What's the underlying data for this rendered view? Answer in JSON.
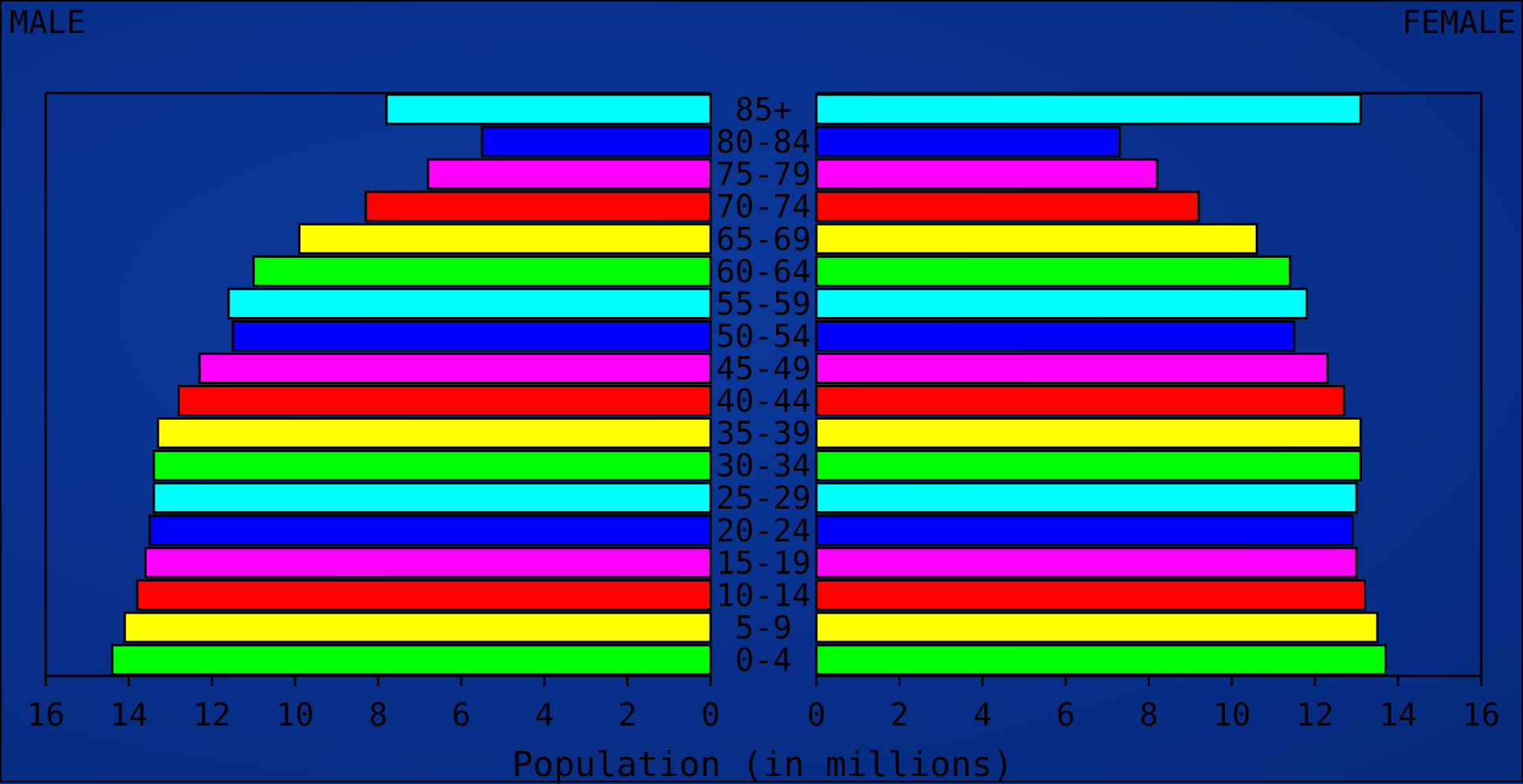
{
  "chart_data": {
    "type": "bar",
    "left_label": "MALE",
    "right_label": "FEMALE",
    "xlabel": "Population (in millions)",
    "xlim": [
      0,
      16
    ],
    "ticks": [
      16,
      14,
      12,
      10,
      8,
      6,
      4,
      2,
      0
    ],
    "ticks_right": [
      0,
      2,
      4,
      6,
      8,
      10,
      12,
      14,
      16
    ],
    "categories": [
      "85+",
      "80-84",
      "75-79",
      "70-74",
      "65-69",
      "60-64",
      "55-59",
      "50-54",
      "45-49",
      "40-44",
      "35-39",
      "30-34",
      "25-29",
      "20-24",
      "15-19",
      "10-14",
      "5-9",
      "0-4"
    ],
    "series": [
      {
        "name": "MALE",
        "values": [
          7.8,
          5.5,
          6.8,
          8.3,
          9.9,
          11.0,
          11.6,
          11.5,
          12.3,
          12.8,
          13.3,
          13.4,
          13.4,
          13.5,
          13.6,
          13.8,
          14.1,
          14.4
        ]
      },
      {
        "name": "FEMALE",
        "values": [
          13.1,
          7.3,
          8.2,
          9.2,
          10.6,
          11.4,
          11.8,
          11.5,
          12.3,
          12.7,
          13.1,
          13.1,
          13.0,
          12.9,
          13.0,
          13.2,
          13.5,
          13.7
        ]
      }
    ],
    "bar_colors": [
      "#00ffff",
      "#0000ff",
      "#ff00ff",
      "#ff0000",
      "#ffff00",
      "#00ff00",
      "#00ffff",
      "#0000ff",
      "#ff00ff",
      "#ff0000",
      "#ffff00",
      "#00ff00",
      "#00ffff",
      "#0000ff",
      "#ff00ff",
      "#ff0000",
      "#ffff00",
      "#00ff00"
    ],
    "background_color": "#0a2f8a"
  }
}
